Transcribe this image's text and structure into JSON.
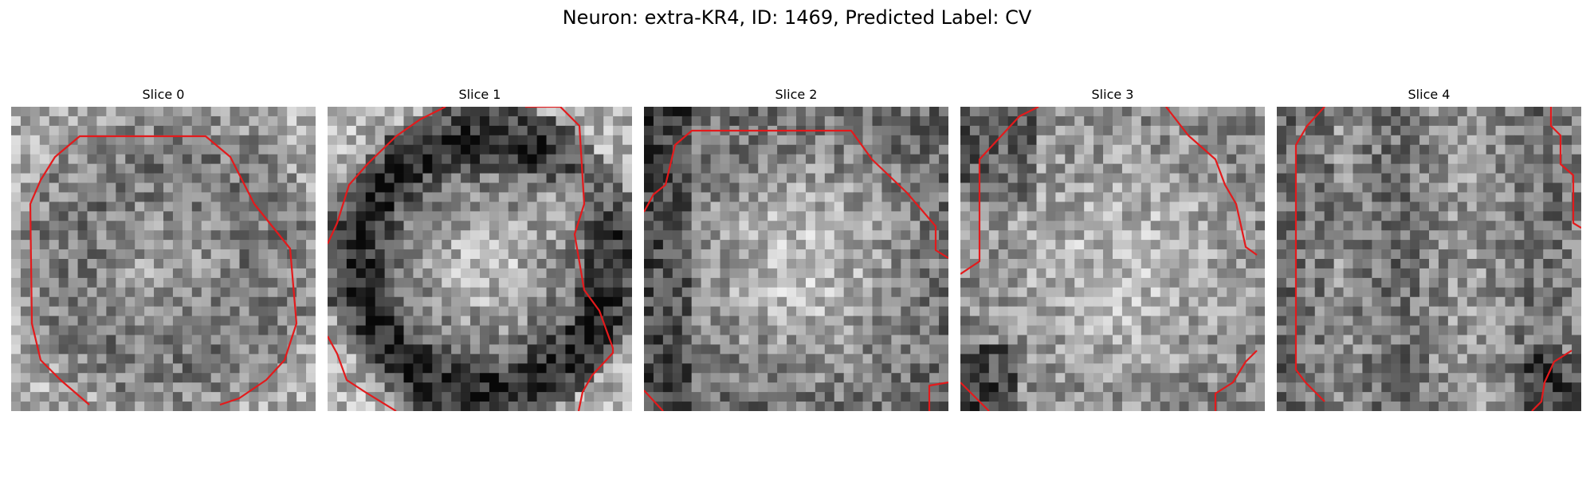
{
  "figure": {
    "title": "Neuron: extra-KR4, ID: 1469, Predicted Label: CV",
    "contour_color": "#e31a1c"
  },
  "panels": [
    {
      "title": "Slice 0",
      "seed": 11,
      "pattern": "ring-soft"
    },
    {
      "title": "Slice 1",
      "seed": 23,
      "pattern": "dark-ring-bright-core"
    },
    {
      "title": "Slice 2",
      "seed": 37,
      "pattern": "bright-core"
    },
    {
      "title": "Slice 3",
      "seed": 51,
      "pattern": "bright-diffuse"
    },
    {
      "title": "Slice 4",
      "seed": 67,
      "pattern": "diffuse"
    }
  ]
}
